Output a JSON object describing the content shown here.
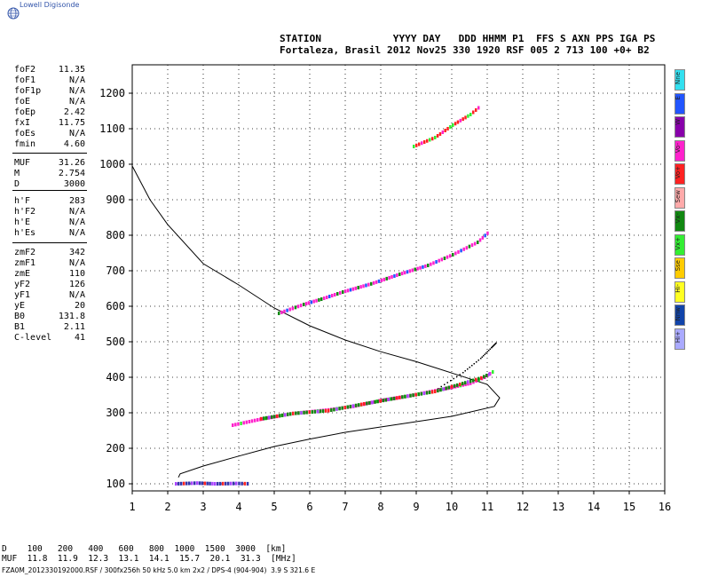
{
  "logo": {
    "text": "Lowell Digisonde",
    "icon": "globe-icon"
  },
  "header": {
    "line1": "STATION            YYYY DAY   DDD HHMM P1  FFS S AXN PPS IGA PS",
    "line2": "Fortaleza, Brasil 2012 Nov25 330 1920 RSF 005 2 713 100 +0+ B2"
  },
  "params": {
    "group1": [
      {
        "label": "foF2",
        "value": "11.35"
      },
      {
        "label": "foF1",
        "value": "N/A"
      },
      {
        "label": "foF1p",
        "value": "N/A"
      },
      {
        "label": "foE",
        "value": "N/A"
      },
      {
        "label": "foEp",
        "value": "2.42"
      },
      {
        "label": "fxI",
        "value": "11.75"
      },
      {
        "label": "foEs",
        "value": "N/A"
      },
      {
        "label": "fmin",
        "value": "4.60"
      }
    ],
    "group2": [
      {
        "label": "MUF",
        "value": "31.26"
      },
      {
        "label": "M",
        "value": "2.754"
      },
      {
        "label": "D",
        "value": "3000"
      }
    ],
    "group3": [
      {
        "label": "h'F",
        "value": "283"
      },
      {
        "label": "h'F2",
        "value": "N/A"
      },
      {
        "label": "h'E",
        "value": "N/A"
      },
      {
        "label": "h'Es",
        "value": "N/A"
      }
    ],
    "group4": [
      {
        "label": "zmF2",
        "value": "342"
      },
      {
        "label": "zmF1",
        "value": "N/A"
      },
      {
        "label": "zmE",
        "value": "110"
      },
      {
        "label": "yF2",
        "value": "126"
      },
      {
        "label": "yF1",
        "value": "N/A"
      },
      {
        "label": "yE",
        "value": "20"
      },
      {
        "label": "B0",
        "value": "131.8"
      },
      {
        "label": "B1",
        "value": "2.11"
      },
      {
        "label": "C-level",
        "value": "41"
      }
    ]
  },
  "modes": [
    {
      "label": "Nne",
      "color": "#33e0f0"
    },
    {
      "label": "E",
      "color": "#2255ff"
    },
    {
      "label": "W",
      "color": "#8800aa"
    },
    {
      "label": "Vo-",
      "color": "#ff22cc"
    },
    {
      "label": "Vo+",
      "color": "#ff2222"
    },
    {
      "label": "Sew",
      "color": "#ffaaaa"
    },
    {
      "label": "Vx-",
      "color": "#118811"
    },
    {
      "label": "Vx+",
      "color": "#33ee33"
    },
    {
      "label": "Sse",
      "color": "#ffcc00"
    },
    {
      "label": "Hi-",
      "color": "#ffff22"
    },
    {
      "label": "Nnw",
      "color": "#1144aa"
    },
    {
      "label": "Hi+",
      "color": "#aaaaff"
    }
  ],
  "footer": {
    "d_row": "D    100   200   400   600   800  1000  1500  3000  [km]",
    "muf_row": "MUF  11.8  11.9  12.3  13.1  14.1  15.7  20.1  31.3  [MHz]",
    "file_line": "FZA0M_2012330192000.RSF / 300fx256h 50 kHz 5.0 km 2x2 / DPS-4 (904-904)  3.9 S 321.6 E"
  },
  "chart_data": {
    "type": "scatter",
    "xlim": [
      1,
      16
    ],
    "ylim": [
      80,
      1280
    ],
    "xticks": [
      1,
      2,
      3,
      4,
      5,
      6,
      7,
      8,
      9,
      10,
      11,
      12,
      13,
      14,
      15,
      16
    ],
    "yticks": [
      100,
      200,
      300,
      400,
      500,
      600,
      700,
      800,
      900,
      1000,
      1100,
      1200
    ],
    "grid": true,
    "traces": [
      {
        "name": "O-trace 1st hop",
        "color": "#ff22cc",
        "points": [
          [
            3.8,
            265
          ],
          [
            4.5,
            280
          ],
          [
            5.5,
            298
          ],
          [
            6.5,
            308
          ],
          [
            7.2,
            318
          ],
          [
            8,
            335
          ],
          [
            8.8,
            348
          ],
          [
            9.5,
            362
          ],
          [
            10,
            372
          ],
          [
            10.5,
            383
          ],
          [
            10.9,
            400
          ],
          [
            11.2,
            420
          ]
        ]
      },
      {
        "name": "X-trace 1st hop",
        "color": "#118811",
        "points": [
          [
            4.6,
            283
          ],
          [
            5.5,
            298
          ],
          [
            6.5,
            306
          ],
          [
            7.5,
            325
          ],
          [
            8.5,
            343
          ],
          [
            9.5,
            360
          ],
          [
            10.2,
            380
          ],
          [
            10.8,
            398
          ],
          [
            11.1,
            412
          ]
        ]
      },
      {
        "name": "O-trace 2nd hop",
        "color": "#ff22cc",
        "points": [
          [
            5.1,
            580
          ],
          [
            5.8,
            605
          ],
          [
            6.3,
            620
          ],
          [
            6.9,
            640
          ],
          [
            7.7,
            663
          ],
          [
            8.5,
            690
          ],
          [
            9.3,
            715
          ],
          [
            10,
            745
          ],
          [
            10.7,
            780
          ],
          [
            11.05,
            812
          ]
        ]
      },
      {
        "name": "O-trace 3rd hop",
        "color": "#ff2222",
        "points": [
          [
            8.9,
            1050
          ],
          [
            9.5,
            1075
          ],
          [
            10,
            1110
          ],
          [
            10.5,
            1140
          ],
          [
            10.8,
            1165
          ]
        ]
      },
      {
        "name": "Es echoes",
        "color": "#3333aa",
        "points": [
          [
            2.2,
            100
          ],
          [
            2.8,
            102
          ],
          [
            3.3,
            100
          ],
          [
            3.9,
            101
          ],
          [
            4.3,
            100
          ]
        ]
      }
    ],
    "profile": [
      [
        1,
        995
      ],
      [
        1.5,
        900
      ],
      [
        2,
        830
      ],
      [
        3,
        720
      ],
      [
        4,
        660
      ],
      [
        5,
        595
      ],
      [
        6,
        545
      ],
      [
        7,
        505
      ],
      [
        8,
        472
      ],
      [
        9,
        444
      ],
      [
        10,
        412
      ],
      [
        11,
        380
      ],
      [
        11.35,
        342
      ],
      [
        11.2,
        318
      ],
      [
        10,
        290
      ],
      [
        9,
        275
      ],
      [
        8,
        260
      ],
      [
        7,
        245
      ],
      [
        6,
        226
      ],
      [
        5,
        205
      ],
      [
        4,
        178
      ],
      [
        3,
        150
      ],
      [
        2.35,
        128
      ],
      [
        2.3,
        118
      ]
    ],
    "x_trace_model": [
      [
        9.6,
        370
      ],
      [
        10.3,
        415
      ],
      [
        10.8,
        455
      ],
      [
        11.1,
        485
      ],
      [
        11.25,
        500
      ]
    ]
  }
}
